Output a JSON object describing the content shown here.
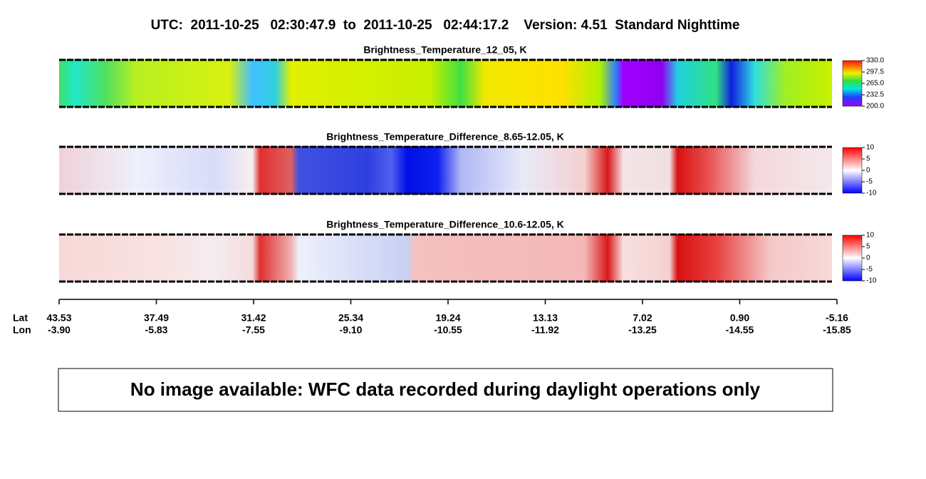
{
  "title": "UTC:  2011-10-25   02:30:47.9  to  2011-10-25   02:44:17.2    Version: 4.51  Standard Nighttime",
  "panels": [
    {
      "title": "Brightness_Temperature_12_05, K",
      "scale": "temperature",
      "lim": [
        200,
        330
      ],
      "ticks": [
        {
          "value": 330,
          "label": "330.0"
        },
        {
          "value": 297.5,
          "label": "297.5"
        },
        {
          "value": 265,
          "label": "265.0"
        },
        {
          "value": 232.5,
          "label": "232.5"
        },
        {
          "value": 200,
          "label": "200.0"
        }
      ]
    },
    {
      "title": "Brightness_Temperature_Difference_8.65-12.05, K",
      "scale": "difference",
      "lim": [
        -10,
        10
      ],
      "ticks": [
        10,
        5,
        0,
        -5,
        -10
      ]
    },
    {
      "title": "Brightness_Temperature_Difference_10.6-12.05, K",
      "scale": "difference2",
      "lim": [
        -10,
        10
      ],
      "ticks": [
        10,
        5,
        0,
        -5,
        -10
      ]
    }
  ],
  "axis": {
    "lat_label": "Lat",
    "lon_label": "Lon",
    "lat_ticks": [
      43.53,
      37.49,
      31.42,
      25.34,
      19.24,
      13.13,
      7.02,
      {
        "value": 0.9,
        "label": "0.90"
      },
      -5.16
    ],
    "lon_ticks": [
      {
        "value": -3.9,
        "label": "-3.90"
      },
      -5.83,
      -7.55,
      {
        "value": -9.1,
        "label": "-9.10"
      },
      -10.55,
      -11.92,
      -13.25,
      -14.55,
      -15.85
    ]
  },
  "notice": "No image available: WFC data recorded during daylight operations only"
}
